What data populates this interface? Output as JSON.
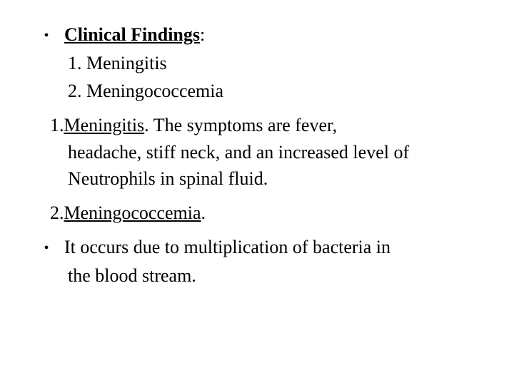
{
  "heading": {
    "label": "Clinical Findings",
    "colon": ":"
  },
  "list": {
    "item1": "1. Meningitis",
    "item2": "2. Meningococcemia"
  },
  "section1": {
    "num": "1.",
    "title": "Meningitis",
    "period": ".",
    "line1": " The symptoms are fever,",
    "line2": "headache, stiff neck, and an increased level of",
    "line3": "Neutrophils in spinal fluid."
  },
  "section2": {
    "num": "2.",
    "title": "Meningococcemia",
    "period": "."
  },
  "section3": {
    "line1": "It occurs due to multiplication of bacteria in",
    "line2": "the blood stream."
  },
  "bullet_char": "•",
  "colors": {
    "text": "#000000",
    "background": "#ffffff"
  },
  "font": {
    "family": "Times New Roman",
    "base_size": 26
  }
}
